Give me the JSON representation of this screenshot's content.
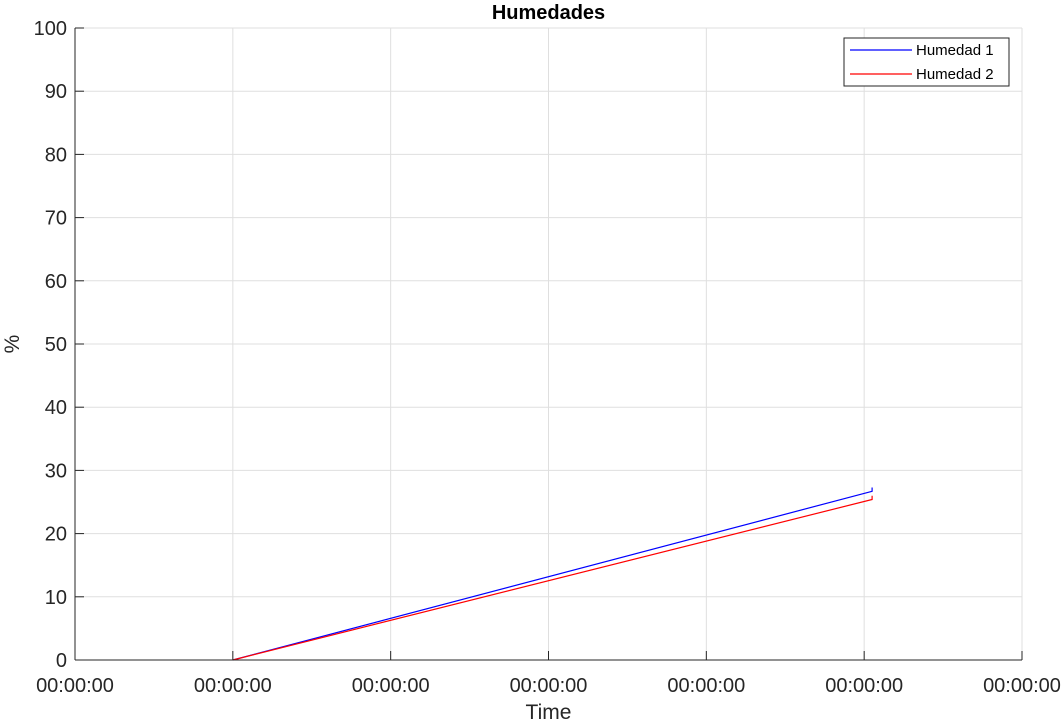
{
  "chart_data": {
    "type": "line",
    "title": "Humedades",
    "xlabel": "Time",
    "ylabel": "%",
    "ylim": [
      0,
      100
    ],
    "yticks": [
      0,
      10,
      20,
      30,
      40,
      50,
      60,
      70,
      80,
      90,
      100
    ],
    "xlim": [
      0,
      6
    ],
    "xticks": [
      0,
      1,
      2,
      3,
      4,
      5,
      6
    ],
    "xtick_labels": [
      "00:00:00",
      "00:00:00",
      "00:00:00",
      "00:00:00",
      "00:00:00",
      "00:00:00",
      "00:00:00"
    ],
    "grid": true,
    "legend_position": "top-right",
    "series": [
      {
        "name": "Humedad 1",
        "color": "#0000ff",
        "x": [
          1.0,
          5.05,
          5.05
        ],
        "y": [
          0,
          26.7,
          27.3
        ]
      },
      {
        "name": "Humedad 2",
        "color": "#ff0000",
        "x": [
          1.0,
          5.05,
          5.05
        ],
        "y": [
          0,
          25.4,
          26.0
        ]
      }
    ]
  }
}
